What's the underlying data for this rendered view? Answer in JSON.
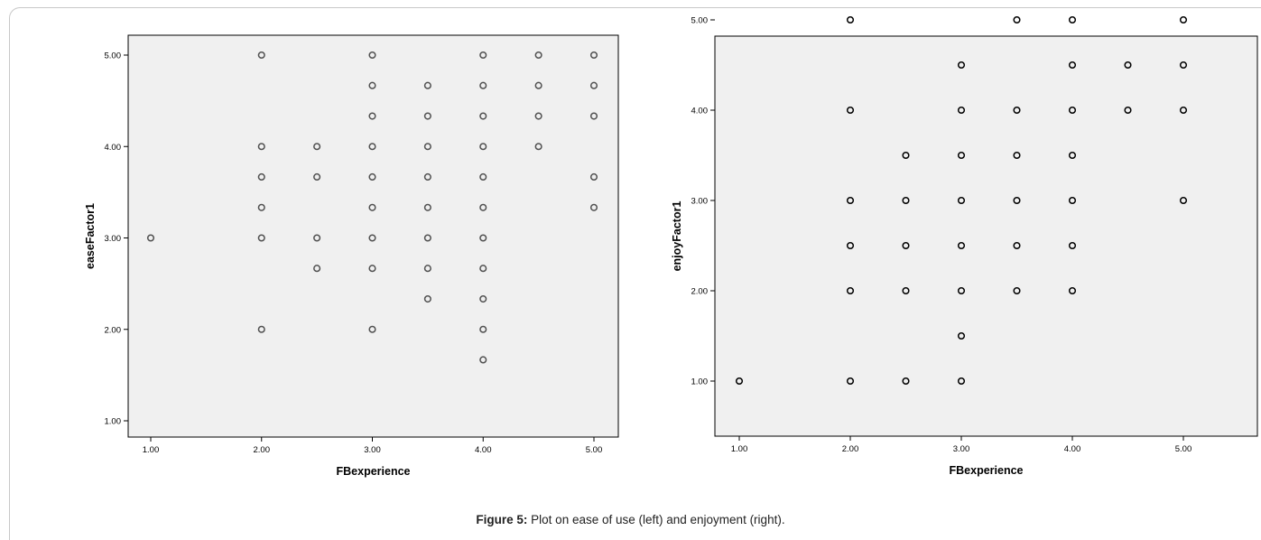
{
  "caption": {
    "label": "Figure 5:",
    "text": " Plot on ease of use (left) and enjoyment (right)."
  },
  "colors": {
    "plot_bg": "#f0f0f0",
    "left_marker": "#505050",
    "right_marker": "#000000"
  },
  "chart_data": [
    {
      "type": "scatter",
      "title": "",
      "xlabel": "FBexperience",
      "ylabel": "easeFactor1",
      "xlim": [
        1,
        5
      ],
      "ylim": [
        1,
        5
      ],
      "xticks": [
        "1.00",
        "2.00",
        "3.00",
        "4.00",
        "5.00"
      ],
      "yticks": [
        "1.00",
        "2.00",
        "3.00",
        "4.00",
        "5.00"
      ],
      "grid": false,
      "points": [
        [
          1.0,
          3.0
        ],
        [
          2.0,
          5.0
        ],
        [
          2.0,
          4.0
        ],
        [
          2.0,
          3.667
        ],
        [
          2.0,
          3.333
        ],
        [
          2.0,
          3.0
        ],
        [
          2.0,
          2.0
        ],
        [
          2.5,
          4.0
        ],
        [
          2.5,
          3.667
        ],
        [
          2.5,
          3.0
        ],
        [
          2.5,
          2.667
        ],
        [
          3.0,
          5.0
        ],
        [
          3.0,
          4.667
        ],
        [
          3.0,
          4.333
        ],
        [
          3.0,
          4.0
        ],
        [
          3.0,
          3.667
        ],
        [
          3.0,
          3.333
        ],
        [
          3.0,
          3.0
        ],
        [
          3.0,
          2.667
        ],
        [
          3.0,
          2.0
        ],
        [
          3.5,
          4.667
        ],
        [
          3.5,
          4.333
        ],
        [
          3.5,
          4.0
        ],
        [
          3.5,
          3.667
        ],
        [
          3.5,
          3.333
        ],
        [
          3.5,
          3.0
        ],
        [
          3.5,
          2.667
        ],
        [
          3.5,
          2.333
        ],
        [
          4.0,
          5.0
        ],
        [
          4.0,
          4.667
        ],
        [
          4.0,
          4.333
        ],
        [
          4.0,
          4.0
        ],
        [
          4.0,
          3.667
        ],
        [
          4.0,
          3.333
        ],
        [
          4.0,
          3.0
        ],
        [
          4.0,
          2.667
        ],
        [
          4.0,
          2.333
        ],
        [
          4.0,
          2.0
        ],
        [
          4.0,
          1.667
        ],
        [
          4.5,
          5.0
        ],
        [
          4.5,
          4.667
        ],
        [
          4.5,
          4.333
        ],
        [
          4.5,
          4.0
        ],
        [
          5.0,
          5.0
        ],
        [
          5.0,
          4.667
        ],
        [
          5.0,
          4.333
        ],
        [
          5.0,
          3.667
        ],
        [
          5.0,
          3.333
        ]
      ]
    },
    {
      "type": "scatter",
      "title": "",
      "xlabel": "FBexperience",
      "ylabel": "enjoyFactor1",
      "xlim": [
        1,
        5
      ],
      "ylim": [
        1,
        5
      ],
      "xticks": [
        "1.00",
        "2.00",
        "3.00",
        "4.00",
        "5.00"
      ],
      "yticks": [
        "1.00",
        "2.00",
        "3.00",
        "4.00",
        "5.00"
      ],
      "grid": false,
      "points": [
        [
          1.0,
          1.0
        ],
        [
          2.0,
          5.0
        ],
        [
          2.0,
          4.0
        ],
        [
          2.0,
          3.0
        ],
        [
          2.0,
          2.5
        ],
        [
          2.0,
          2.0
        ],
        [
          2.0,
          1.0
        ],
        [
          2.5,
          3.5
        ],
        [
          2.5,
          3.0
        ],
        [
          2.5,
          2.5
        ],
        [
          2.5,
          2.0
        ],
        [
          2.5,
          1.0
        ],
        [
          3.0,
          4.5
        ],
        [
          3.0,
          4.0
        ],
        [
          3.0,
          3.5
        ],
        [
          3.0,
          3.0
        ],
        [
          3.0,
          2.5
        ],
        [
          3.0,
          2.0
        ],
        [
          3.0,
          1.5
        ],
        [
          3.0,
          1.0
        ],
        [
          3.5,
          5.0
        ],
        [
          3.5,
          4.0
        ],
        [
          3.5,
          3.5
        ],
        [
          3.5,
          3.0
        ],
        [
          3.5,
          2.5
        ],
        [
          3.5,
          2.0
        ],
        [
          4.0,
          5.0
        ],
        [
          4.0,
          4.5
        ],
        [
          4.0,
          4.0
        ],
        [
          4.0,
          3.5
        ],
        [
          4.0,
          3.0
        ],
        [
          4.0,
          2.5
        ],
        [
          4.0,
          2.0
        ],
        [
          4.5,
          4.5
        ],
        [
          4.5,
          4.0
        ],
        [
          5.0,
          5.0
        ],
        [
          5.0,
          4.5
        ],
        [
          5.0,
          4.0
        ],
        [
          5.0,
          3.0
        ]
      ]
    }
  ]
}
